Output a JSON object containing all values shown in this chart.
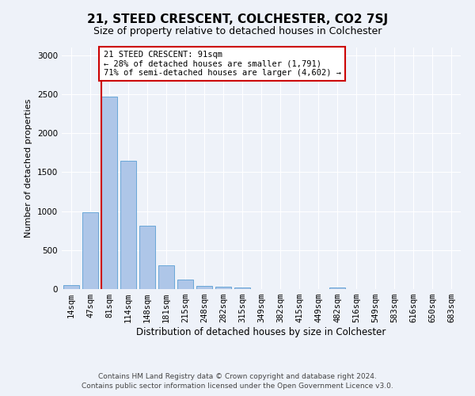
{
  "title": "21, STEED CRESCENT, COLCHESTER, CO2 7SJ",
  "subtitle": "Size of property relative to detached houses in Colchester",
  "xlabel": "Distribution of detached houses by size in Colchester",
  "ylabel": "Number of detached properties",
  "bar_labels": [
    "14sqm",
    "47sqm",
    "81sqm",
    "114sqm",
    "148sqm",
    "181sqm",
    "215sqm",
    "248sqm",
    "282sqm",
    "315sqm",
    "349sqm",
    "382sqm",
    "415sqm",
    "449sqm",
    "482sqm",
    "516sqm",
    "549sqm",
    "583sqm",
    "616sqm",
    "650sqm",
    "683sqm"
  ],
  "bar_values": [
    50,
    990,
    2470,
    1650,
    810,
    300,
    125,
    45,
    35,
    25,
    5,
    0,
    0,
    0,
    25,
    0,
    0,
    0,
    0,
    0,
    0
  ],
  "bar_color": "#aec6e8",
  "bar_edge_color": "#5a9fd4",
  "annotation_title": "21 STEED CRESCENT: 91sqm",
  "annotation_line1": "← 28% of detached houses are smaller (1,791)",
  "annotation_line2": "71% of semi-detached houses are larger (4,602) →",
  "annotation_box_color": "#ffffff",
  "annotation_border_color": "#cc0000",
  "vline_color": "#cc0000",
  "vline_x_index": 2,
  "ylim": [
    0,
    3100
  ],
  "yticks": [
    0,
    500,
    1000,
    1500,
    2000,
    2500,
    3000
  ],
  "footer1": "Contains HM Land Registry data © Crown copyright and database right 2024.",
  "footer2": "Contains public sector information licensed under the Open Government Licence v3.0.",
  "bg_color": "#eef2f9",
  "plot_bg_color": "#eef2f9",
  "title_fontsize": 11,
  "subtitle_fontsize": 9,
  "xlabel_fontsize": 8.5,
  "ylabel_fontsize": 8,
  "tick_fontsize": 7.5,
  "footer_fontsize": 6.5
}
